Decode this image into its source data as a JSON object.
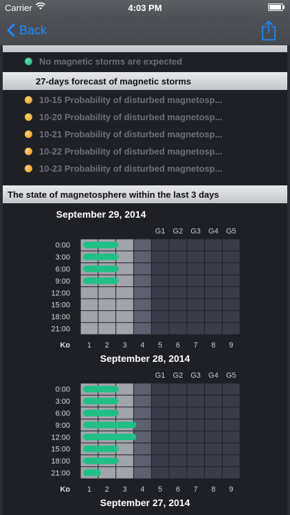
{
  "status_bar": {
    "carrier": "Carrier",
    "time": "4:03 PM"
  },
  "nav": {
    "back_label": "Back"
  },
  "current": {
    "status_text": "No magnetic storms are expected",
    "status_color": "#1fbf85"
  },
  "forecast": {
    "title": "27-days forecast of magnetic storms",
    "items": [
      {
        "label": "10-15 Probability of disturbed magnetosp..."
      },
      {
        "label": "10-20 Probability of disturbed magnetosp..."
      },
      {
        "label": "10-21 Probability of disturbed magnetosp..."
      },
      {
        "label": "10-22 Probability of disturbed magnetosp..."
      },
      {
        "label": "10-23 Probability of disturbed magnetosp..."
      }
    ]
  },
  "state": {
    "title": "The state of magnetosphere within the last 3 days"
  },
  "chart_data": [
    {
      "type": "bar",
      "title": "September 29, 2014",
      "xlabel": "Kp",
      "x_ticks": [
        "1",
        "2",
        "3",
        "4",
        "5",
        "6",
        "7",
        "8",
        "9"
      ],
      "g_labels": [
        "G1",
        "G2",
        "G3",
        "G4",
        "G5"
      ],
      "categories": [
        "0:00",
        "3:00",
        "6:00",
        "9:00",
        "12:00",
        "15:00",
        "18:00",
        "21:00"
      ],
      "values": [
        2,
        2,
        2,
        2,
        0,
        0,
        0,
        0
      ],
      "xlim": [
        0,
        9
      ],
      "bar_color": "#1fbf85"
    },
    {
      "type": "bar",
      "title": "September 28, 2014",
      "xlabel": "Kp",
      "x_ticks": [
        "1",
        "2",
        "3",
        "4",
        "5",
        "6",
        "7",
        "8",
        "9"
      ],
      "g_labels": [
        "G1",
        "G2",
        "G3",
        "G4",
        "G5"
      ],
      "categories": [
        "0:00",
        "3:00",
        "6:00",
        "9:00",
        "12:00",
        "15:00",
        "18:00",
        "21:00"
      ],
      "values": [
        2,
        2,
        2,
        3,
        3,
        2,
        2,
        1
      ],
      "xlim": [
        0,
        9
      ],
      "bar_color": "#1fbf85"
    },
    {
      "type": "bar",
      "title": "September 27, 2014"
    }
  ]
}
